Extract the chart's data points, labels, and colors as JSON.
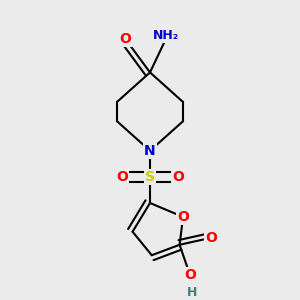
{
  "background_color": "#ebebeb",
  "atom_colors": {
    "O": "#ff0000",
    "N": "#0000cc",
    "S": "#cccc00",
    "H": "#408080",
    "C": "#000000"
  },
  "bond_width": 1.5,
  "font_size": 10,
  "xlim": [
    -1.3,
    1.3
  ],
  "ylim": [
    -1.6,
    1.6
  ],
  "figsize": [
    3.0,
    3.0
  ],
  "dpi": 100
}
